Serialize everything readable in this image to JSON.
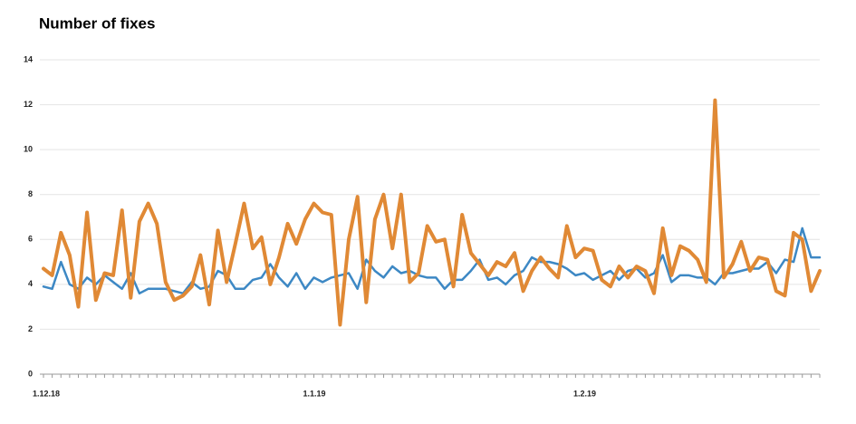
{
  "chart_data": {
    "type": "line",
    "title": "Number of fixes",
    "categories": [
      "1.12.18",
      null,
      null,
      null,
      null,
      null,
      null,
      null,
      null,
      null,
      null,
      null,
      null,
      null,
      null,
      null,
      null,
      null,
      null,
      null,
      null,
      null,
      null,
      null,
      null,
      null,
      null,
      null,
      null,
      null,
      null,
      "1.1.19",
      null,
      null,
      null,
      null,
      null,
      null,
      null,
      null,
      null,
      null,
      null,
      null,
      null,
      null,
      null,
      null,
      null,
      null,
      null,
      null,
      null,
      null,
      null,
      null,
      null,
      null,
      null,
      null,
      null,
      null,
      "1.2.19",
      null,
      null,
      null,
      null,
      null,
      null,
      null,
      null,
      null,
      null,
      null,
      null,
      null,
      null,
      null,
      null,
      null,
      null,
      null,
      null,
      null,
      null,
      null,
      null,
      null,
      null,
      null
    ],
    "series": [
      {
        "color": "#3d88c4",
        "values": [
          3.9,
          3.8,
          5.0,
          4.0,
          3.8,
          4.3,
          4.0,
          4.4,
          4.1,
          3.8,
          4.5,
          3.6,
          3.8,
          3.8,
          3.8,
          3.7,
          3.6,
          4.1,
          3.8,
          3.9,
          4.6,
          4.4,
          3.8,
          3.8,
          4.2,
          4.3,
          4.9,
          4.3,
          3.9,
          4.5,
          3.8,
          4.3,
          4.1,
          4.3,
          4.4,
          4.5,
          3.8,
          5.1,
          4.6,
          4.3,
          4.8,
          4.5,
          4.6,
          4.4,
          4.3,
          4.3,
          3.8,
          4.2,
          4.2,
          4.6,
          5.1,
          4.2,
          4.3,
          4.0,
          4.4,
          4.6,
          5.2,
          5.0,
          5.0,
          4.9,
          4.7,
          4.4,
          4.5,
          4.2,
          4.4,
          4.6,
          4.2,
          4.6,
          4.7,
          4.3,
          4.5,
          5.3,
          4.1,
          4.4,
          4.4,
          4.3,
          4.3,
          4.0,
          4.5,
          4.5,
          4.6,
          4.7,
          4.7,
          5.0,
          4.5,
          5.1,
          5.0,
          6.5,
          5.2,
          5.2
        ]
      },
      {
        "color": "#e08935",
        "values": [
          4.7,
          4.4,
          6.3,
          5.3,
          3.0,
          7.2,
          3.3,
          4.5,
          4.4,
          7.3,
          3.4,
          6.8,
          7.6,
          6.7,
          4.1,
          3.3,
          3.5,
          3.9,
          5.3,
          3.1,
          6.4,
          4.1,
          5.8,
          7.6,
          5.6,
          6.1,
          4.0,
          5.2,
          6.7,
          5.8,
          6.9,
          7.6,
          7.2,
          7.1,
          2.2,
          6.0,
          7.9,
          3.2,
          6.9,
          8.0,
          5.6,
          8.0,
          4.1,
          4.5,
          6.6,
          5.9,
          6.0,
          3.9,
          7.1,
          5.4,
          4.9,
          4.4,
          5.0,
          4.8,
          5.4,
          3.7,
          4.6,
          5.2,
          4.7,
          4.3,
          6.6,
          5.2,
          5.6,
          5.5,
          4.2,
          3.9,
          4.8,
          4.3,
          4.8,
          4.6,
          3.6,
          6.5,
          4.4,
          5.7,
          5.5,
          5.1,
          4.1,
          12.2,
          4.3,
          4.9,
          5.9,
          4.6,
          5.2,
          5.1,
          3.7,
          3.5,
          6.3,
          6.0,
          3.7,
          4.6
        ]
      }
    ],
    "ylim": [
      0,
      14
    ],
    "yticks": [
      0,
      2,
      4,
      6,
      8,
      10,
      12,
      14
    ],
    "grid": true
  }
}
